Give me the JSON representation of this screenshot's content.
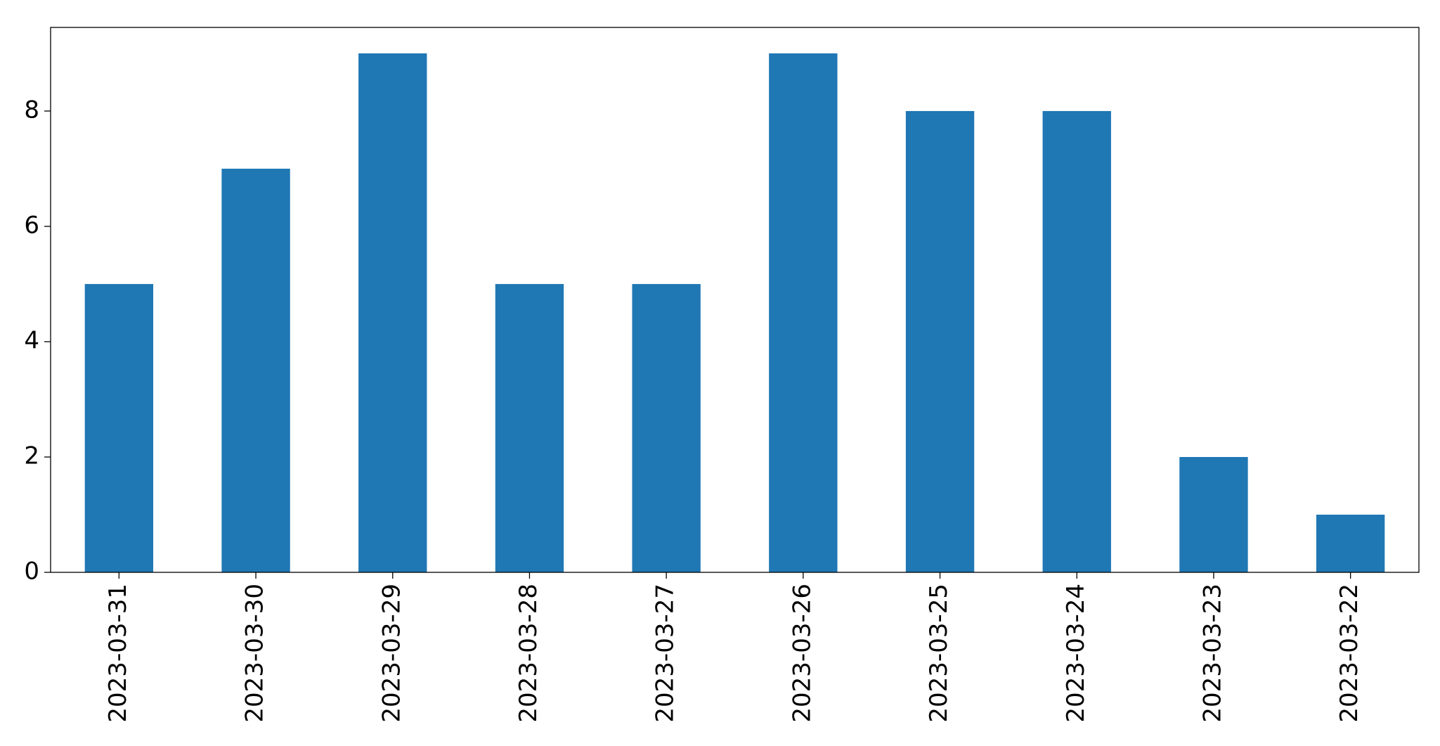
{
  "chart_data": {
    "type": "bar",
    "categories": [
      "2023-03-31",
      "2023-03-30",
      "2023-03-29",
      "2023-03-28",
      "2023-03-27",
      "2023-03-26",
      "2023-03-25",
      "2023-03-24",
      "2023-03-23",
      "2023-03-22"
    ],
    "values": [
      5,
      7,
      9,
      5,
      5,
      9,
      8,
      8,
      2,
      1
    ],
    "color": "#1f77b4",
    "ylim": [
      0,
      9.45
    ],
    "yticks": [
      0,
      2,
      4,
      6,
      8
    ],
    "grid": false
  }
}
